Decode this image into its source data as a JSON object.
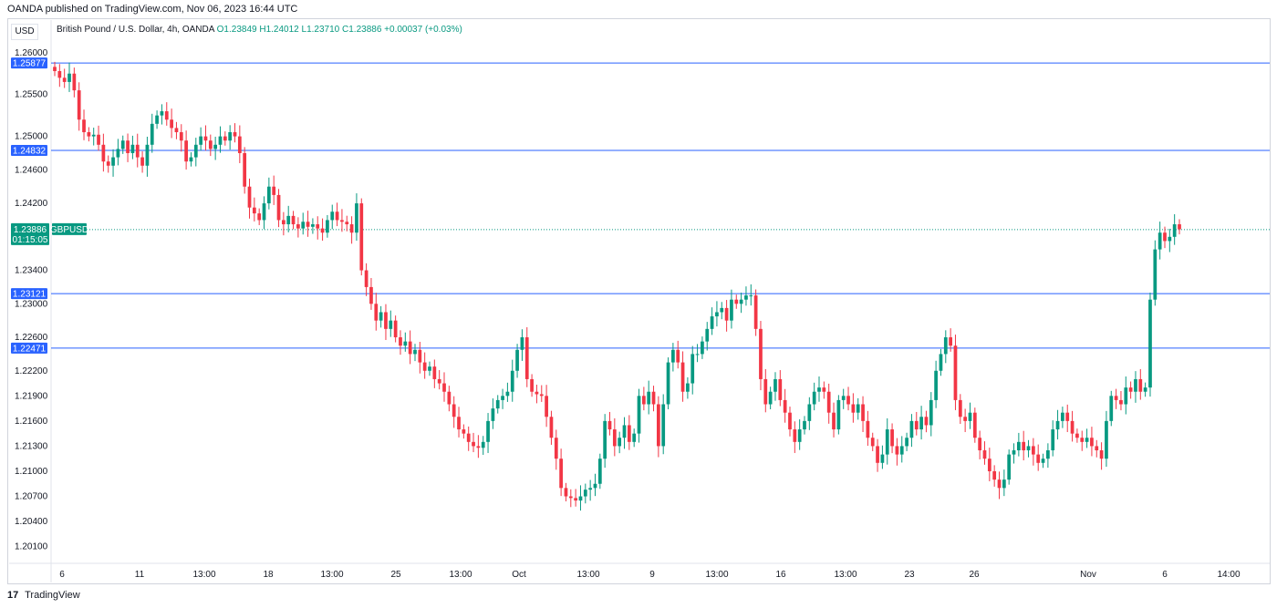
{
  "header": {
    "publisher": "OANDA published on TradingView.com, Nov 06, 2023 16:44 UTC",
    "currency": "USD",
    "symbol_desc": "British Pound / U.S. Dollar, 4h, OANDA",
    "open": "O1.23849",
    "high": "H1.24012",
    "low": "L1.23710",
    "close": "C1.23886",
    "change": "+0.00037 (+0.03%)"
  },
  "footer": {
    "brand": "TradingView",
    "logo_glyph": "17"
  },
  "colors": {
    "up": "#089981",
    "down": "#f23645",
    "level_line": "#2962ff",
    "current_price": "#089981"
  },
  "chart_data": {
    "type": "candlestick",
    "symbol": "GBPUSD",
    "interval": "4h",
    "ylim": [
      1.199,
      1.2615
    ],
    "y_ticks": [
      "1.26000",
      "1.25500",
      "1.25000",
      "1.24600",
      "1.24200",
      "1.23400",
      "1.23000",
      "1.22600",
      "1.22200",
      "1.21900",
      "1.21600",
      "1.21300",
      "1.21000",
      "1.20700",
      "1.20400",
      "1.20100"
    ],
    "x_ticks": [
      "6",
      "11",
      "13:00",
      "18",
      "13:00",
      "25",
      "13:00",
      "Oct",
      "13:00",
      "9",
      "13:00",
      "16",
      "13:00",
      "23",
      "26",
      "Nov",
      "6",
      "14:00"
    ],
    "levels": [
      {
        "label": "1.25877",
        "value": 1.25877
      },
      {
        "label": "1.24832",
        "value": 1.24832
      },
      {
        "label": "1.23121",
        "value": 1.23121
      },
      {
        "label": "1.22471",
        "value": 1.22471
      }
    ],
    "current": {
      "label": "1.23886",
      "countdown": "01:15:05",
      "symbol_tag": "GBPUSD",
      "value": 1.23886
    },
    "candles_close": [
      1.2578,
      1.257,
      1.2565,
      1.2575,
      1.2555,
      1.252,
      1.2505,
      1.25,
      1.2502,
      1.249,
      1.247,
      1.2465,
      1.2475,
      1.2485,
      1.2495,
      1.248,
      1.249,
      1.2475,
      1.2465,
      1.249,
      1.2515,
      1.2525,
      1.253,
      1.252,
      1.251,
      1.2505,
      1.2495,
      1.247,
      1.2475,
      1.249,
      1.25,
      1.2495,
      1.2485,
      1.249,
      1.25,
      1.2495,
      1.2505,
      1.25,
      1.248,
      1.244,
      1.2415,
      1.2408,
      1.24,
      1.242,
      1.244,
      1.243,
      1.24,
      1.2395,
      1.2405,
      1.2395,
      1.239,
      1.2398,
      1.2392,
      1.2395,
      1.239,
      1.2385,
      1.24,
      1.241,
      1.24,
      1.2398,
      1.2395,
      1.2385,
      1.242,
      1.234,
      1.232,
      1.23,
      1.228,
      1.229,
      1.227,
      1.228,
      1.226,
      1.225,
      1.2255,
      1.224,
      1.2245,
      1.223,
      1.222,
      1.2225,
      1.221,
      1.2205,
      1.2195,
      1.218,
      1.2165,
      1.215,
      1.2145,
      1.2135,
      1.213,
      1.2128,
      1.2135,
      1.216,
      1.2175,
      1.2185,
      1.219,
      1.2195,
      1.222,
      1.2245,
      1.226,
      1.221,
      1.2195,
      1.2192,
      1.219,
      1.2165,
      1.214,
      1.2115,
      1.208,
      1.207,
      1.2068,
      1.2065,
      1.207,
      1.2078,
      1.208,
      1.2085,
      1.2115,
      1.216,
      1.215,
      1.213,
      1.214,
      1.2155,
      1.2135,
      1.2145,
      1.219,
      1.218,
      1.2195,
      1.218,
      1.213,
      1.218,
      1.223,
      1.2245,
      1.223,
      1.2195,
      1.2205,
      1.224,
      1.224,
      1.2255,
      1.227,
      1.2285,
      1.229,
      1.2295,
      1.228,
      1.2305,
      1.23,
      1.2305,
      1.231,
      1.231,
      1.227,
      1.221,
      1.218,
      1.2195,
      1.221,
      1.2185,
      1.217,
      1.215,
      1.2135,
      1.215,
      1.216,
      1.218,
      1.2195,
      1.22,
      1.2195,
      1.217,
      1.215,
      1.2185,
      1.219,
      1.218,
      1.217,
      1.218,
      1.216,
      1.214,
      1.213,
      1.211,
      1.212,
      1.215,
      1.213,
      1.212,
      1.213,
      1.214,
      1.216,
      1.215,
      1.2165,
      1.2155,
      1.2185,
      1.222,
      1.224,
      1.226,
      1.225,
      1.2185,
      1.2165,
      1.216,
      1.217,
      1.214,
      1.2125,
      1.2115,
      1.21,
      1.209,
      1.208,
      1.209,
      1.212,
      1.2125,
      1.2135,
      1.2125,
      1.213,
      1.212,
      1.211,
      1.2115,
      1.2125,
      1.215,
      1.216,
      1.217,
      1.216,
      1.2145,
      1.214,
      1.2135,
      1.214,
      1.213,
      1.2125,
      1.2115,
      1.216,
      1.219,
      1.2185,
      1.218,
      1.22,
      1.2195,
      1.221,
      1.2195,
      1.22,
      1.2305,
      1.2365,
      1.2385,
      1.2375,
      1.238,
      1.2395,
      1.2389
    ]
  }
}
